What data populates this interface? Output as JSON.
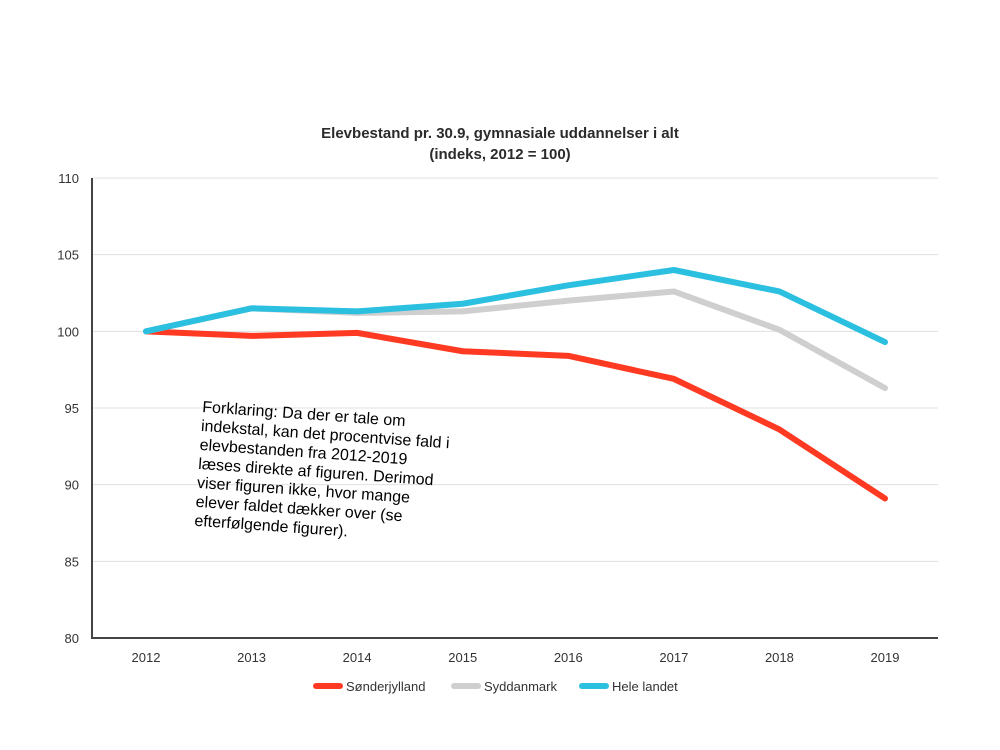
{
  "chart_data": {
    "type": "line",
    "title": "Elevbestand pr. 30.9, gymnasiale uddannelser i alt",
    "subtitle": "(indeks, 2012 = 100)",
    "xlabel": "",
    "ylabel": "",
    "categories": [
      "2012",
      "2013",
      "2014",
      "2015",
      "2016",
      "2017",
      "2018",
      "2019"
    ],
    "ylim": [
      80,
      110
    ],
    "yticks": [
      80,
      85,
      90,
      95,
      100,
      105,
      110
    ],
    "grid": true,
    "legend_position": "bottom",
    "series": [
      {
        "name": "Sønderjylland",
        "color": "#ff3a22",
        "values": [
          100,
          99.7,
          99.9,
          98.7,
          98.4,
          96.9,
          93.6,
          89.1
        ]
      },
      {
        "name": "Syddanmark",
        "color": "#cfcfcf",
        "values": [
          100,
          101.5,
          101.2,
          101.3,
          102.0,
          102.6,
          100.1,
          96.3
        ]
      },
      {
        "name": "Hele landet",
        "color": "#2bbfe0",
        "values": [
          100,
          101.5,
          101.3,
          101.8,
          103.0,
          104.0,
          102.6,
          99.3
        ]
      }
    ]
  },
  "note": {
    "text": "Forklaring: Da der er tale om indekstal, kan det procentvise fald i elevbestanden fra 2012-2019 læses direkte af figuren. Derimod viser figuren ikke, hvor mange elever faldet dækker over (se efterfølgende figurer)."
  }
}
